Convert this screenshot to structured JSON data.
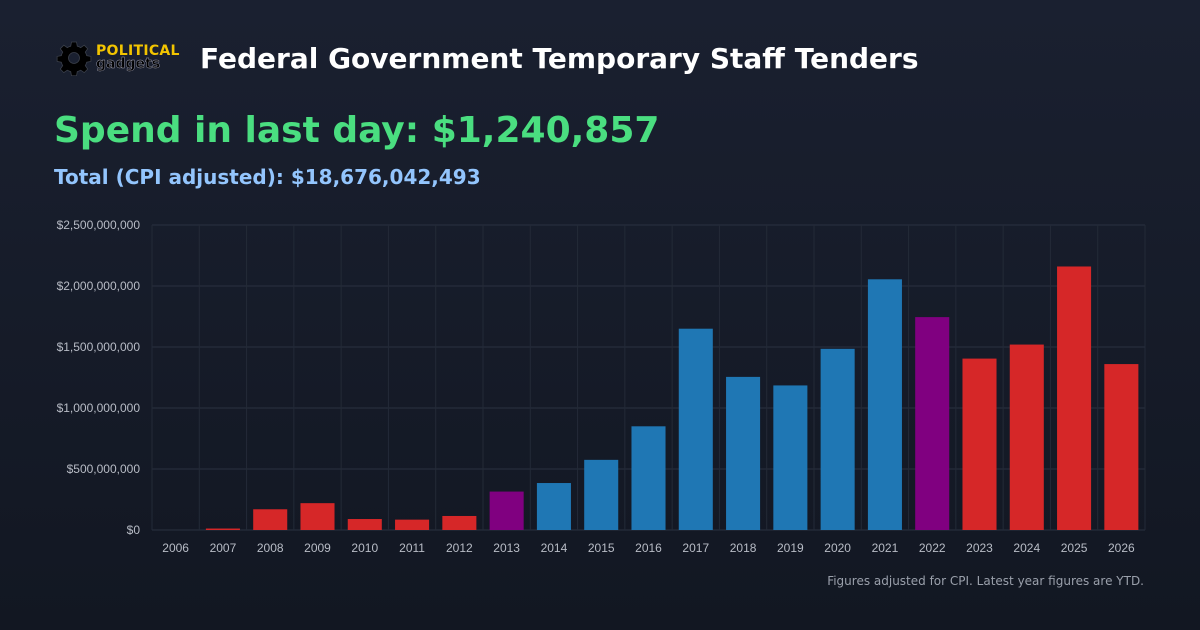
{
  "header": {
    "logo_top": "POLITICAL",
    "logo_bottom": "gadgets",
    "title": "Federal Government Temporary Staff Tenders"
  },
  "stats": {
    "spend_label": "Spend in last day: $1,240,857",
    "total_label": "Total (CPI adjusted): $18,676,042,493"
  },
  "footer": {
    "note": "Figures adjusted for CPI. Latest year figures are YTD."
  },
  "icons": {
    "logo": "gear-icon"
  },
  "colors": {
    "red": "#d62728",
    "blue": "#1f77b4",
    "purple": "#800080",
    "spend": "#4ade80",
    "total": "#93c5fd"
  },
  "chart_data": {
    "type": "bar",
    "categories": [
      "2006",
      "2007",
      "2008",
      "2009",
      "2010",
      "2011",
      "2012",
      "2013",
      "2014",
      "2015",
      "2016",
      "2017",
      "2018",
      "2019",
      "2020",
      "2021",
      "2022",
      "2023",
      "2024",
      "2025",
      "2026"
    ],
    "values": [
      0,
      12000000,
      170000000,
      220000000,
      90000000,
      85000000,
      115000000,
      315000000,
      385000000,
      575000000,
      850000000,
      1650000000,
      1255000000,
      1185000000,
      1485000000,
      2055000000,
      1745000000,
      1405000000,
      1520000000,
      2160000000,
      1360000000
    ],
    "bar_colors": [
      "#d62728",
      "#d62728",
      "#d62728",
      "#d62728",
      "#d62728",
      "#d62728",
      "#d62728",
      "#800080",
      "#1f77b4",
      "#1f77b4",
      "#1f77b4",
      "#1f77b4",
      "#1f77b4",
      "#1f77b4",
      "#1f77b4",
      "#1f77b4",
      "#800080",
      "#d62728",
      "#d62728",
      "#d62728",
      "#d62728"
    ],
    "yticks": [
      0,
      500000000,
      1000000000,
      1500000000,
      2000000000,
      2500000000
    ],
    "ytick_labels": [
      "$0",
      "$500,000,000",
      "$1,000,000,000",
      "$1,500,000,000",
      "$2,000,000,000",
      "$2,500,000,000"
    ],
    "ylim": [
      0,
      2500000000
    ],
    "grid": true,
    "legend": "none"
  }
}
